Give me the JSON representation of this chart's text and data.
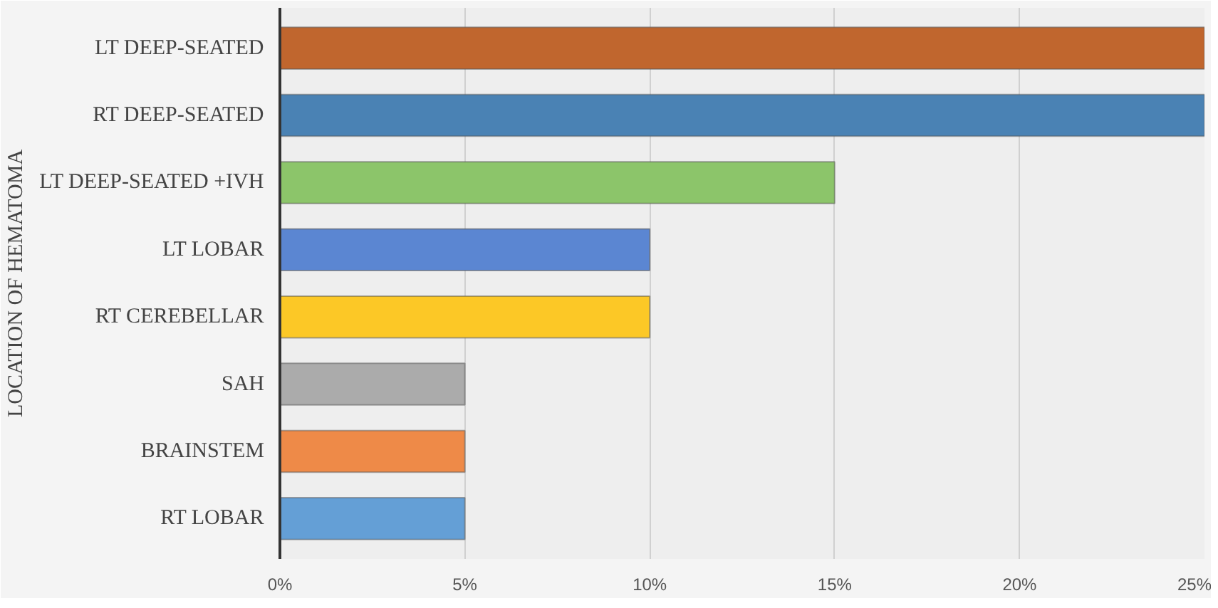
{
  "chart_data": {
    "type": "bar",
    "orientation": "horizontal",
    "ylabel": "LOCATION OF HEMATOMA",
    "categories": [
      "LT DEEP-SEATED",
      "RT DEEP-SEATED",
      "LT DEEP-SEATED +IVH",
      "LT LOBAR",
      "RT CEREBELLAR",
      "SAH",
      "BRAINSTEM",
      "RT LOBAR"
    ],
    "values": [
      25,
      25,
      15,
      10,
      10,
      5,
      5,
      5
    ],
    "colors": [
      "#c0662e",
      "#4a82b4",
      "#8cc56a",
      "#5b86d2",
      "#fcc826",
      "#ababab",
      "#ee8a48",
      "#649fd6"
    ],
    "xlim": [
      0,
      25
    ],
    "xticks": [
      {
        "value": 0,
        "label": "0%"
      },
      {
        "value": 5,
        "label": "5%"
      },
      {
        "value": 10,
        "label": "10%"
      },
      {
        "value": 15,
        "label": "15%"
      },
      {
        "value": 20,
        "label": "20%"
      },
      {
        "value": 25,
        "label": "25%"
      }
    ],
    "grid": "x"
  }
}
